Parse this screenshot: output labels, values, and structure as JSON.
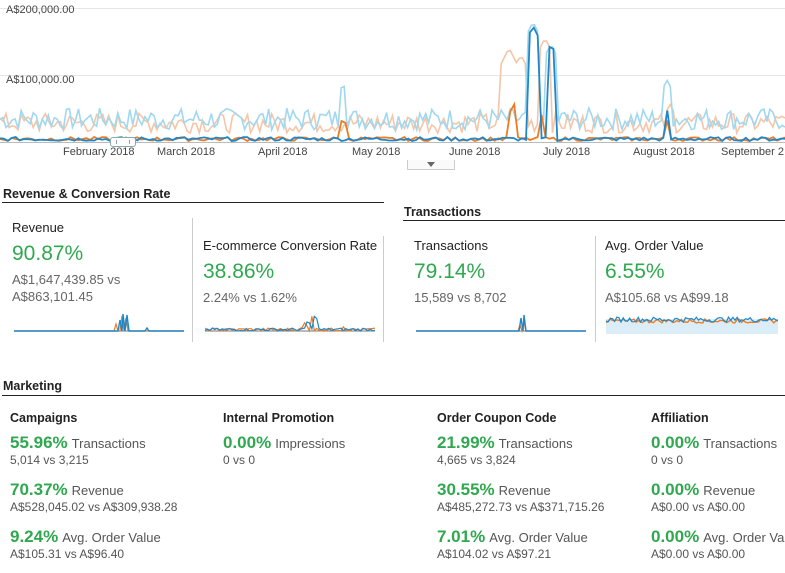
{
  "timeline": {
    "y_labels": [
      "A$200,000.00",
      "A$100,000.00"
    ],
    "months": [
      "February 2018",
      "March 2018",
      "April 2018",
      "May 2018",
      "June 2018",
      "July 2018",
      "August 2018",
      "September 2"
    ],
    "colors": {
      "primary_light": "#9fd8f0",
      "primary": "#1f87c9",
      "secondary_light": "#f5c5a8",
      "secondary": "#f07a21"
    }
  },
  "revenue_section": {
    "title": "Revenue & Conversion Rate",
    "cards": [
      {
        "label": "Revenue",
        "pct": "90.87%",
        "cmp": "A$1,647,439.85 vs A$863,101.45"
      },
      {
        "label": "E-commerce Conversion Rate",
        "pct": "38.86%",
        "cmp": "2.24% vs 1.62%"
      }
    ]
  },
  "transactions_section": {
    "title": "Transactions",
    "cards": [
      {
        "label": "Transactions",
        "pct": "79.14%",
        "cmp": "15,589 vs 8,702"
      },
      {
        "label": "Avg. Order Value",
        "pct": "6.55%",
        "cmp": "A$105.68 vs A$99.18"
      }
    ]
  },
  "marketing": {
    "title": "Marketing",
    "columns": [
      {
        "title": "Campaigns",
        "rows": [
          {
            "pct": "55.96%",
            "name": "Transactions",
            "cmp": "5,014 vs 3,215"
          },
          {
            "pct": "70.37%",
            "name": "Revenue",
            "cmp": "A$528,045.02 vs A$309,938.28"
          },
          {
            "pct": "9.24%",
            "name": "Avg. Order Value",
            "cmp": "A$105.31 vs A$96.40"
          }
        ]
      },
      {
        "title": "Internal Promotion",
        "rows": [
          {
            "pct": "0.00%",
            "name": "Impressions",
            "cmp": "0 vs 0"
          }
        ]
      },
      {
        "title": "Order Coupon Code",
        "rows": [
          {
            "pct": "21.99%",
            "name": "Transactions",
            "cmp": "4,665 vs 3,824"
          },
          {
            "pct": "30.55%",
            "name": "Revenue",
            "cmp": "A$485,272.73 vs A$371,715.26"
          },
          {
            "pct": "7.01%",
            "name": "Avg. Order Value",
            "cmp": "A$104.02 vs A$97.21"
          }
        ]
      },
      {
        "title": "Affiliation",
        "rows": [
          {
            "pct": "0.00%",
            "name": "Transactions",
            "cmp": "0 vs 0"
          },
          {
            "pct": "0.00%",
            "name": "Revenue",
            "cmp": "A$0.00 vs A$0.00"
          },
          {
            "pct": "0.00%",
            "name": "Avg. Order Va",
            "cmp": "A$0.00 vs A$0.00"
          }
        ]
      }
    ]
  }
}
